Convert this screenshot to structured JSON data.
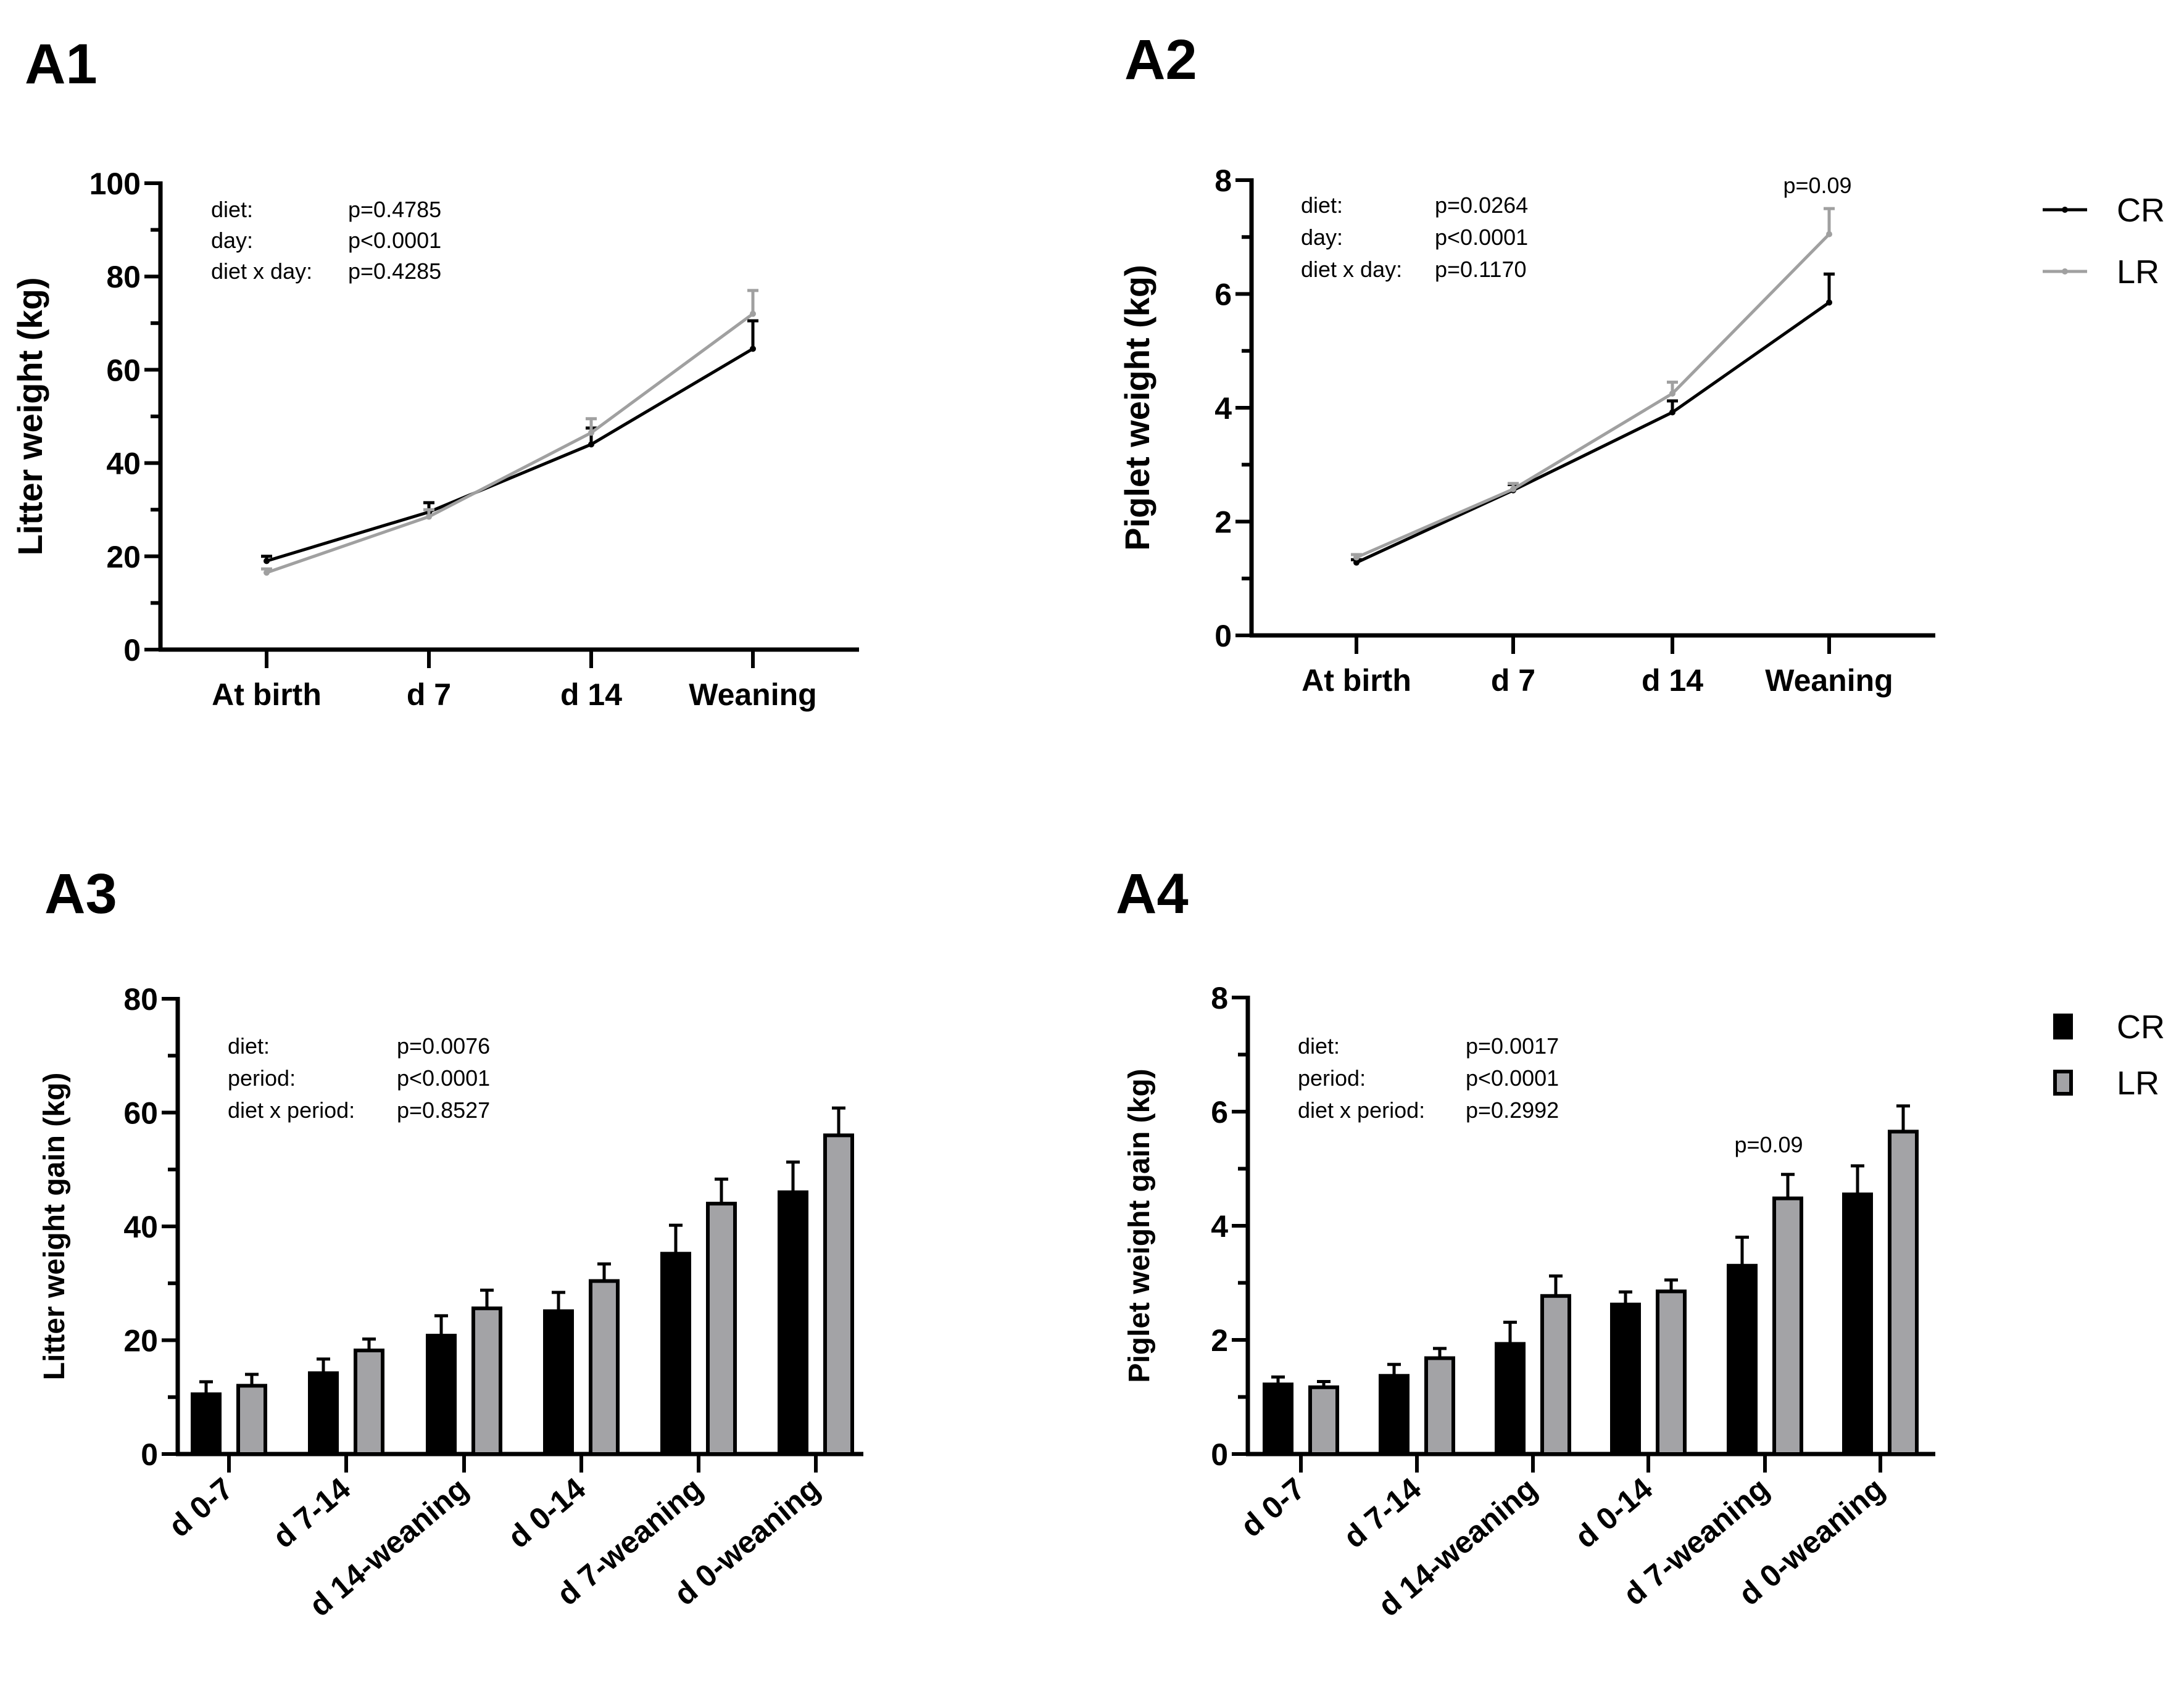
{
  "colors": {
    "CR": "#000000",
    "LR": "#a0a0a0",
    "LR_bar": "#a3a3a6"
  },
  "legend": {
    "line": [
      "CR",
      "LR"
    ],
    "bar": [
      "CR",
      "LR"
    ]
  },
  "chart_data": [
    {
      "id": "A1",
      "title": "A1",
      "type": "line",
      "categories": [
        "At birth",
        "d 7",
        "d 14",
        "Weaning"
      ],
      "ylabel": "Litter weight (kg)",
      "ylim": [
        0,
        100
      ],
      "yticks": [
        0,
        20,
        40,
        60,
        80,
        100
      ],
      "minor_step": 10,
      "series": [
        {
          "name": "CR",
          "values": [
            19.0,
            29.5,
            44.0,
            64.5
          ],
          "error": [
            1.0,
            2.0,
            3.5,
            6.0
          ]
        },
        {
          "name": "LR",
          "values": [
            16.5,
            28.5,
            46.5,
            72.0
          ],
          "error": [
            0.8,
            1.5,
            3.0,
            5.0
          ]
        }
      ],
      "stats": [
        [
          "diet:",
          "p=0.4785"
        ],
        [
          "day:",
          "p<0.0001"
        ],
        [
          "diet x day:",
          "p=0.4285"
        ]
      ],
      "annotations": []
    },
    {
      "id": "A2",
      "title": "A2",
      "type": "line",
      "categories": [
        "At birth",
        "d 7",
        "d 14",
        "Weaning"
      ],
      "ylabel": "Piglet weight (kg)",
      "ylim": [
        0,
        8
      ],
      "yticks": [
        0,
        2,
        4,
        6,
        8
      ],
      "minor_step": 1,
      "series": [
        {
          "name": "CR",
          "values": [
            1.28,
            2.55,
            3.92,
            5.85
          ],
          "error": [
            0.05,
            0.1,
            0.2,
            0.5
          ]
        },
        {
          "name": "LR",
          "values": [
            1.37,
            2.57,
            4.25,
            7.05
          ],
          "error": [
            0.05,
            0.1,
            0.2,
            0.45
          ]
        }
      ],
      "stats": [
        [
          "diet:",
          "p=0.0264"
        ],
        [
          "day:",
          "p<0.0001"
        ],
        [
          "diet x day:",
          "p=0.1170"
        ]
      ],
      "annotations": [
        {
          "text": "p=0.09",
          "category": "Weaning"
        }
      ],
      "legend": "right"
    },
    {
      "id": "A3",
      "title": "A3",
      "type": "bar",
      "categories": [
        "d 0-7",
        "d 7-14",
        "d 14-weaning",
        "d 0-14",
        "d 7-weaning",
        "d 0-weaning"
      ],
      "ylabel": "Litter weight gain (kg)",
      "ylim": [
        0,
        80
      ],
      "yticks": [
        0,
        20,
        40,
        60,
        80
      ],
      "minor_step": 10,
      "series": [
        {
          "name": "CR",
          "values": [
            10.5,
            14.2,
            20.8,
            25.1,
            35.2,
            46.0
          ],
          "error": [
            2.2,
            2.5,
            3.5,
            3.3,
            5.0,
            5.3
          ]
        },
        {
          "name": "LR",
          "values": [
            12.0,
            18.2,
            25.6,
            30.4,
            44.0,
            56.0
          ],
          "error": [
            2.0,
            2.0,
            3.2,
            3.0,
            4.3,
            4.8
          ]
        }
      ],
      "stats": [
        [
          "diet:",
          "p=0.0076"
        ],
        [
          "period:",
          "p<0.0001"
        ],
        [
          "diet x period:",
          "p=0.8527"
        ]
      ],
      "annotations": []
    },
    {
      "id": "A4",
      "title": "A4",
      "type": "bar",
      "categories": [
        "d 0-7",
        "d 7-14",
        "d 14-weaning",
        "d 0-14",
        "d 7-weaning",
        "d 0-weaning"
      ],
      "ylabel": "Piglet weight gain (kg)",
      "ylim": [
        0,
        8
      ],
      "yticks": [
        0,
        2,
        4,
        6,
        8
      ],
      "minor_step": 1,
      "series": [
        {
          "name": "CR",
          "values": [
            1.22,
            1.37,
            1.93,
            2.62,
            3.3,
            4.55
          ],
          "error": [
            0.13,
            0.2,
            0.38,
            0.22,
            0.5,
            0.5
          ]
        },
        {
          "name": "LR",
          "values": [
            1.17,
            1.68,
            2.77,
            2.85,
            4.48,
            5.65
          ],
          "error": [
            0.1,
            0.17,
            0.35,
            0.2,
            0.42,
            0.45
          ]
        }
      ],
      "stats": [
        [
          "diet:",
          "p=0.0017"
        ],
        [
          "period:",
          "p<0.0001"
        ],
        [
          "diet x period:",
          "p=0.2992"
        ]
      ],
      "annotations": [
        {
          "text": "p=0.09",
          "category": "d 7-weaning"
        }
      ],
      "legend": "right"
    }
  ]
}
